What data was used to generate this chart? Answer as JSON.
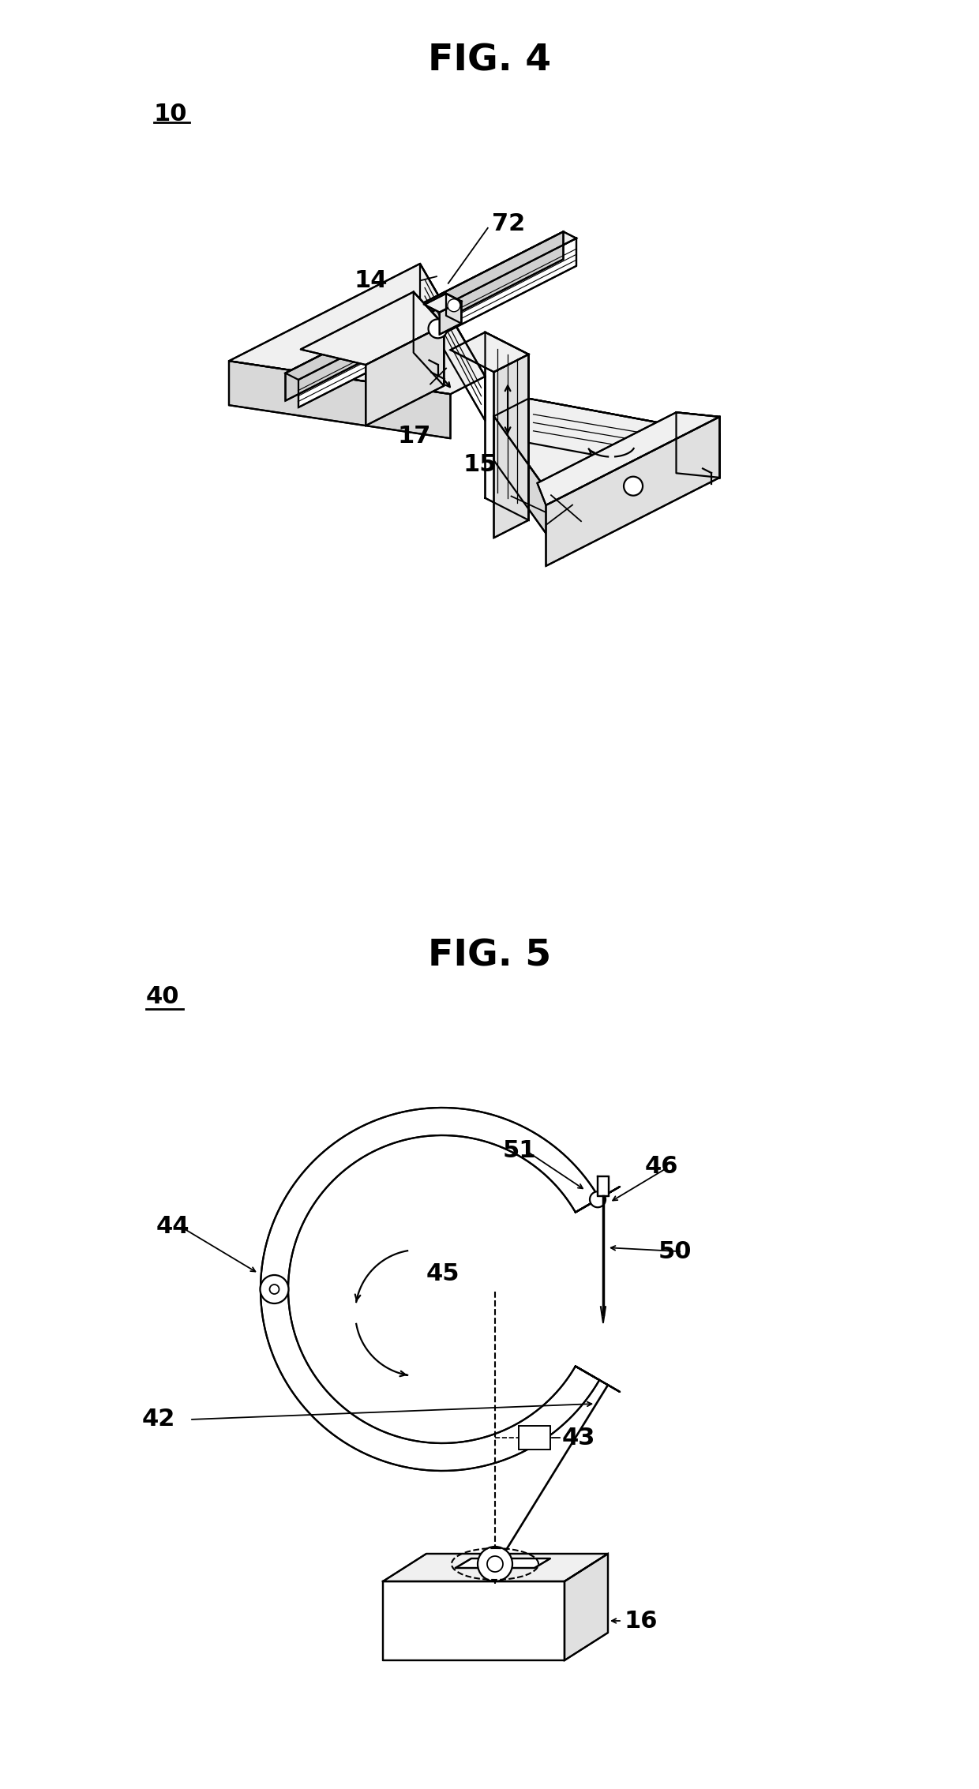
{
  "fig4_title": "FIG. 4",
  "fig5_title": "FIG. 5",
  "background_color": "#ffffff",
  "line_color": "#000000",
  "line_width": 1.6,
  "fig4_ref": "10",
  "fig5_ref": "40"
}
